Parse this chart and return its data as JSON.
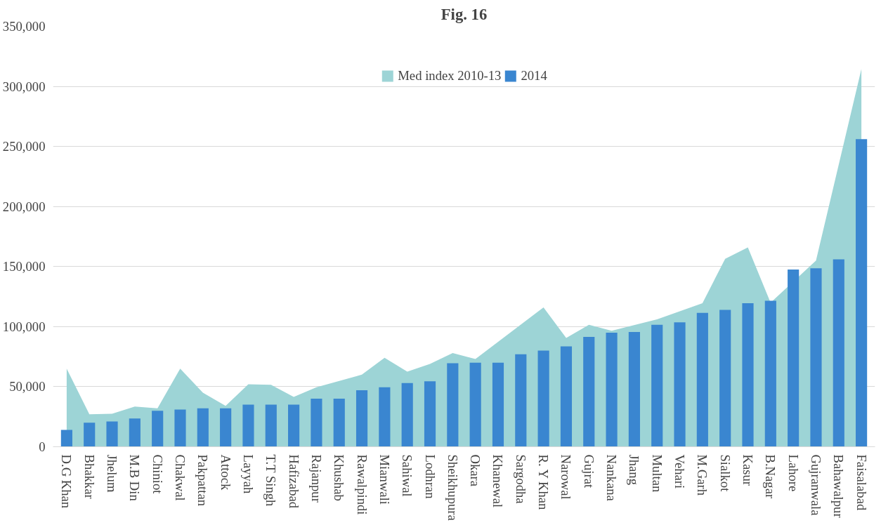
{
  "chart_data": {
    "type": "bar",
    "title": "Fig. 16",
    "categories": [
      "D.G Khan",
      "Bhakkar",
      "Jhelum",
      "M.B Din",
      "Chiniot",
      "Chakwal",
      "Pakpattan",
      "Attock",
      "Layyah",
      "T.T Singh",
      "Hafizabad",
      "Rajanpur",
      "Khushab",
      "Rawalpindi",
      "Mianwali",
      "Sahiwal",
      "Lodhran",
      "Sheikhupura",
      "Okara",
      "Khanewal",
      "Sargodha",
      "R. Y Khan",
      "Narowal",
      "Gujrat",
      "Nankana",
      "Jhang",
      "Multan",
      "Vehari",
      "M.Garh",
      "Sialkot",
      "Kasur",
      "B.Nagar",
      "Lahore",
      "Gujranwala",
      "Bahawalpur",
      "Faisalabad"
    ],
    "series": [
      {
        "name": "Med index 2010-13",
        "type": "area",
        "color": "#9dd4d6",
        "values": [
          65000,
          27000,
          27500,
          33500,
          32000,
          65000,
          45000,
          34000,
          52000,
          51500,
          41500,
          49500,
          null,
          60000,
          74000,
          62500,
          69000,
          78000,
          73000,
          null,
          null,
          116000,
          90500,
          101500,
          96500,
          null,
          106000,
          null,
          119500,
          156500,
          166000,
          120000,
          null,
          155000,
          null,
          314500
        ]
      },
      {
        "name": "2014",
        "color": "#3a86d0",
        "values": [
          14000,
          20000,
          21000,
          23500,
          30000,
          31000,
          32000,
          32000,
          35000,
          35000,
          35000,
          40000,
          40000,
          47000,
          49500,
          53000,
          54500,
          69500,
          70000,
          70000,
          77000,
          80000,
          83500,
          91500,
          95000,
          95500,
          101500,
          103500,
          111500,
          114000,
          119500,
          121500,
          147500,
          148500,
          156000,
          256000
        ]
      }
    ],
    "ylim": [
      0,
      350000
    ],
    "yticks": [
      {
        "value": 0,
        "label": "0"
      },
      {
        "value": 50000,
        "label": "50,000"
      },
      {
        "value": 100000,
        "label": "100,000"
      },
      {
        "value": 150000,
        "label": "150,000"
      },
      {
        "value": 200000,
        "label": "200,000"
      },
      {
        "value": 250000,
        "label": "250,000"
      },
      {
        "value": 300000,
        "label": "300,000"
      },
      {
        "value": 350000,
        "label": "350,000"
      }
    ],
    "grid": "y",
    "legend": "top"
  }
}
